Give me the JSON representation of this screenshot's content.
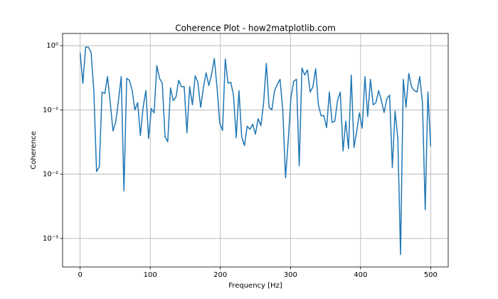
{
  "chart_data": {
    "type": "line",
    "title": "Coherence Plot - how2matplotlib.com",
    "xlabel": "Frequency [Hz]",
    "ylabel": "Coherence",
    "x": [
      0,
      3.90625,
      7.8125,
      11.71875,
      15.625,
      19.53125,
      23.4375,
      27.34375,
      31.25,
      35.15625,
      39.0625,
      42.96875,
      46.875,
      50.78125,
      54.6875,
      58.59375,
      62.5,
      66.40625,
      70.3125,
      74.21875,
      78.125,
      82.03125,
      85.9375,
      89.84375,
      93.75,
      97.65625,
      101.5625,
      105.46875,
      109.375,
      113.28125,
      117.1875,
      121.09375,
      125,
      128.90625,
      132.8125,
      136.71875,
      140.625,
      144.53125,
      148.4375,
      152.34375,
      156.25,
      160.15625,
      164.0625,
      167.96875,
      171.875,
      175.78125,
      179.6875,
      183.59375,
      187.5,
      191.40625,
      195.3125,
      199.21875,
      203.125,
      207.03125,
      210.9375,
      214.84375,
      218.75,
      222.65625,
      226.5625,
      230.46875,
      234.375,
      238.28125,
      242.1875,
      246.09375,
      250,
      253.90625,
      257.8125,
      261.71875,
      265.625,
      269.53125,
      273.4375,
      277.34375,
      281.25,
      285.15625,
      289.0625,
      292.96875,
      296.875,
      300.78125,
      304.6875,
      308.59375,
      312.5,
      316.40625,
      320.3125,
      324.21875,
      328.125,
      332.03125,
      335.9375,
      339.84375,
      343.75,
      347.65625,
      351.5625,
      355.46875,
      359.375,
      363.28125,
      367.1875,
      371.09375,
      375,
      378.90625,
      382.8125,
      386.71875,
      390.625,
      394.53125,
      398.4375,
      402.34375,
      406.25,
      410.15625,
      414.0625,
      417.96875,
      421.875,
      425.78125,
      429.6875,
      433.59375,
      437.5,
      441.40625,
      445.3125,
      449.21875,
      453.125,
      457.03125,
      460.9375,
      464.84375,
      468.75,
      472.65625,
      476.5625,
      480.46875,
      484.375,
      488.28125,
      492.1875,
      496.09375,
      500
    ],
    "values": [
      0.78,
      0.26,
      0.95,
      0.95,
      0.79,
      0.2,
      0.011,
      0.013,
      0.19,
      0.18,
      0.33,
      0.13,
      0.047,
      0.065,
      0.14,
      0.33,
      0.0055,
      0.31,
      0.29,
      0.2,
      0.1,
      0.13,
      0.04,
      0.11,
      0.2,
      0.036,
      0.105,
      0.09,
      0.49,
      0.31,
      0.26,
      0.038,
      0.032,
      0.22,
      0.14,
      0.16,
      0.29,
      0.23,
      0.23,
      0.044,
      0.23,
      0.12,
      0.34,
      0.27,
      0.11,
      0.22,
      0.38,
      0.24,
      0.36,
      0.63,
      0.22,
      0.062,
      0.048,
      0.62,
      0.26,
      0.27,
      0.17,
      0.037,
      0.2,
      0.038,
      0.028,
      0.056,
      0.05,
      0.06,
      0.042,
      0.073,
      0.057,
      0.13,
      0.53,
      0.11,
      0.1,
      0.2,
      0.25,
      0.3,
      0.1,
      0.0088,
      0.034,
      0.16,
      0.28,
      0.3,
      0.0135,
      0.45,
      0.35,
      0.42,
      0.19,
      0.23,
      0.44,
      0.12,
      0.081,
      0.082,
      0.053,
      0.19,
      0.064,
      0.067,
      0.14,
      0.19,
      0.023,
      0.067,
      0.025,
      0.35,
      0.026,
      0.047,
      0.09,
      0.052,
      0.33,
      0.079,
      0.3,
      0.12,
      0.13,
      0.2,
      0.14,
      0.091,
      0.15,
      0.17,
      0.0127,
      0.096,
      0.036,
      0.00056,
      0.3,
      0.11,
      0.37,
      0.23,
      0.2,
      0.19,
      0.33,
      0.13,
      0.0028,
      0.19,
      0.027
    ],
    "color": "#1f77b4",
    "xlim": [
      -25,
      525
    ],
    "xticks": [
      0,
      100,
      200,
      300,
      400,
      500
    ],
    "ylim": [
      0.00036,
      1.55
    ],
    "yticks": [
      {
        "value": 0.001,
        "label": "10⁻³"
      },
      {
        "value": 0.01,
        "label": "10⁻²"
      },
      {
        "value": 0.1,
        "label": "10⁻¹"
      },
      {
        "value": 1,
        "label": "10⁰"
      }
    ],
    "ylog": true,
    "grid": true
  }
}
